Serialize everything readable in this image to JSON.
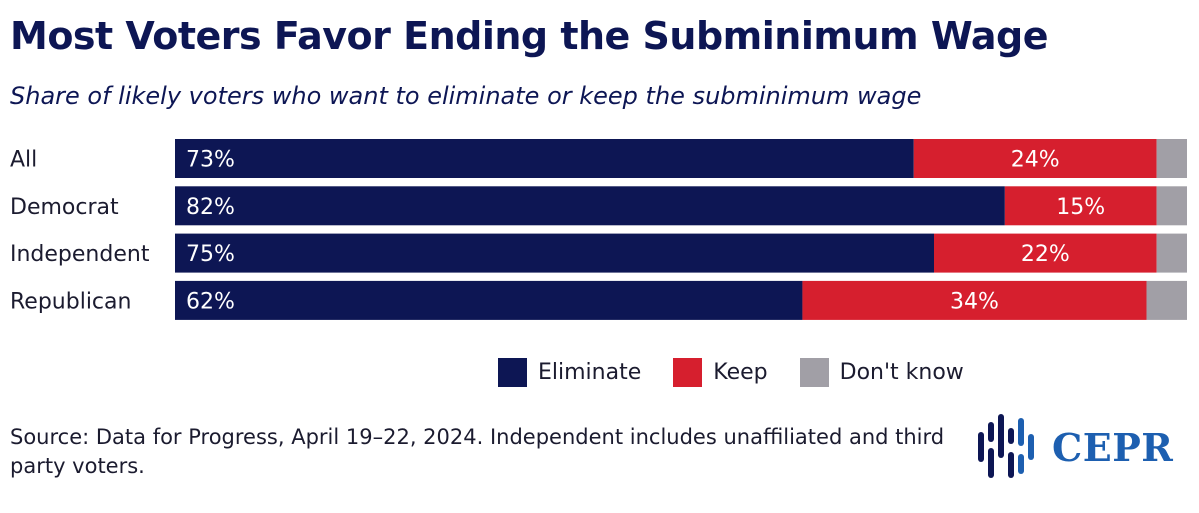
{
  "title": "Most Voters Favor Ending the Subminimum Wage",
  "subtitle": "Share of likely voters who want to eliminate or keep the subminimum wage",
  "colors": {
    "eliminate": "#0d1654",
    "keep": "#d61f2e",
    "dont_know": "#a19fa6",
    "logo": "#1d5fb0"
  },
  "chart_data": {
    "type": "bar",
    "orientation": "horizontal",
    "stacked": true,
    "categories": [
      "All",
      "Democrat",
      "Independent",
      "Republican"
    ],
    "series": [
      {
        "name": "Eliminate",
        "values": [
          73,
          82,
          75,
          62
        ],
        "labels": [
          "73%",
          "82%",
          "75%",
          "62%"
        ]
      },
      {
        "name": "Keep",
        "values": [
          24,
          15,
          22,
          34
        ],
        "labels": [
          "24%",
          "15%",
          "22%",
          "34%"
        ]
      },
      {
        "name": "Don't know",
        "values": [
          3,
          3,
          3,
          4
        ]
      }
    ],
    "xlim": [
      0,
      100
    ],
    "legend_position": "bottom"
  },
  "legend": {
    "eliminate": "Eliminate",
    "keep": "Keep",
    "dont_know": "Don't know"
  },
  "source": "Source: Data for Progress, April 19–22, 2024. Independent includes unaffiliated and third party voters.",
  "logo": {
    "text": "CEPR",
    "icon": "cepr-bars-icon"
  }
}
